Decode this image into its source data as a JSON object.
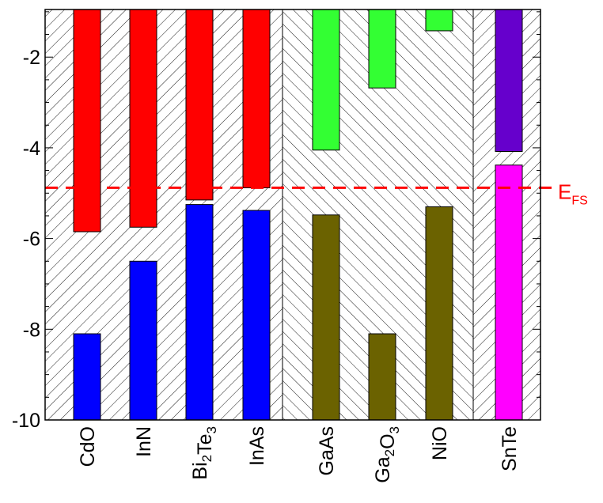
{
  "chart_data": {
    "type": "bar",
    "title": "",
    "xlabel": "",
    "ylabel": "",
    "ylim": [
      -10,
      -0.95
    ],
    "yticks": [
      -2,
      -4,
      -6,
      -8,
      -10
    ],
    "ytick_labels": [
      "-2",
      "-4",
      "-6",
      "-8",
      "-10"
    ],
    "grid": false,
    "categories": [
      {
        "main": "CdO",
        "parts": [
          [
            "CdO",
            ""
          ]
        ]
      },
      {
        "main": "InN",
        "parts": [
          [
            "InN",
            ""
          ]
        ]
      },
      {
        "main": "Bi2Te3",
        "parts": [
          [
            "Bi",
            "2"
          ],
          [
            "Te",
            "3"
          ]
        ]
      },
      {
        "main": "InAs",
        "parts": [
          [
            "InAs",
            ""
          ]
        ]
      },
      {
        "main": "GaAs",
        "parts": [
          [
            "GaAs",
            ""
          ]
        ]
      },
      {
        "main": "Ga2O3",
        "parts": [
          [
            "Ga",
            "2"
          ],
          [
            "O",
            "3"
          ]
        ]
      },
      {
        "main": "NiO",
        "parts": [
          [
            "NiO",
            ""
          ]
        ]
      },
      {
        "main": "SnTe",
        "parts": [
          [
            "SnTe",
            ""
          ]
        ]
      }
    ],
    "groups": [
      [
        0,
        3
      ],
      [
        4,
        6
      ],
      [
        7,
        7
      ]
    ],
    "series": [
      {
        "role": "conduction_band_minimum",
        "values": [
          -5.85,
          -5.75,
          -5.15,
          -4.88,
          -4.05,
          -2.68,
          -1.42,
          -4.08
        ]
      },
      {
        "role": "valence_band_maximum",
        "values": [
          -8.1,
          -6.5,
          -5.25,
          -5.38,
          -5.48,
          -8.1,
          -5.3,
          -4.38
        ]
      }
    ],
    "colors": {
      "conduction": [
        "#ff0000",
        "#ff0000",
        "#ff0000",
        "#ff0000",
        "#33ff33",
        "#33ff33",
        "#33ff33",
        "#6600cc"
      ],
      "valence": [
        "#0000ff",
        "#0000ff",
        "#0000ff",
        "#0000ff",
        "#6b6200",
        "#6b6200",
        "#6b6200",
        "#ff00ff"
      ],
      "efs_line": "#ff0000",
      "hatch": "#000000"
    },
    "annotations": [
      {
        "name": "efs",
        "y": -4.88,
        "label_main": "E",
        "label_sub": "FS",
        "style": "dashed",
        "color": "#ff0000"
      }
    ]
  }
}
